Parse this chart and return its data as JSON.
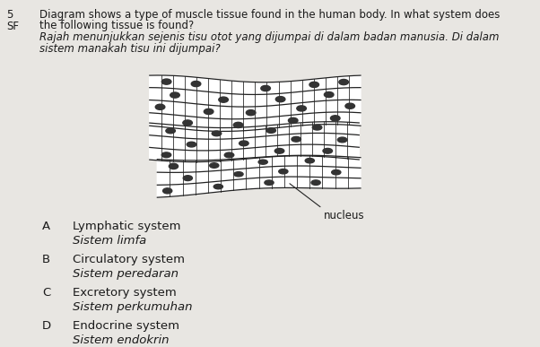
{
  "background_color": "#e8e6e2",
  "text_color": "#1a1a1a",
  "title_number": "5",
  "title_sf": "SF",
  "question_en_1": "Diagram shows a type of muscle tissue found in the human body. In what system does",
  "question_en_2": "the following tissue is found?",
  "question_ms_1": "Rajah menunjukkan sejenis tisu otot yang dijumpai di dalam badan manusia. Di dalam",
  "question_ms_2": "sistem manakah tisu ini dijumpai?",
  "nucleus_label": "nucleus",
  "options": [
    {
      "letter": "A",
      "en": "Lymphatic system",
      "ms": "Sistem limfa"
    },
    {
      "letter": "B",
      "en": "Circulatory system",
      "ms": "Sistem peredaran"
    },
    {
      "letter": "C",
      "en": "Excretory system",
      "ms": "Sistem perkumuhan"
    },
    {
      "letter": "D",
      "en": "Endocrine system",
      "ms": "Sistem endokrin"
    }
  ],
  "fiber_fill": "#ffffff",
  "fiber_edge": "#222222",
  "nucleus_color": "#333333"
}
